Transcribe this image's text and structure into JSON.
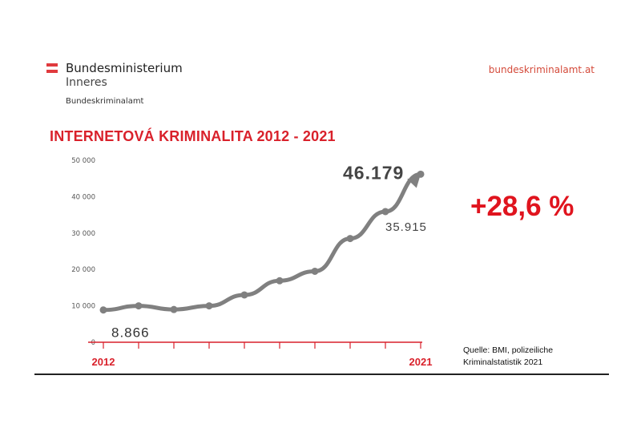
{
  "header": {
    "logo_name": "Bundesministerium",
    "logo_sub": "Inneres",
    "department": "Bundeskriminalamt",
    "website": "bundeskriminalamt.at"
  },
  "colors": {
    "accent_red": "#d9212b",
    "line_gray": "#808080"
  },
  "summary": {
    "change_label": "+28,6 %"
  },
  "source": {
    "line1": "Quelle: BMI, polizeiliche",
    "line2": "Kriminalstatistik 2021"
  },
  "chart_data": {
    "type": "line",
    "title": "INTERNETOVÁ KRIMINALITA 2012 - 2021",
    "x": [
      2012,
      2013,
      2014,
      2015,
      2016,
      2017,
      2018,
      2019,
      2020,
      2021
    ],
    "x_tick_labels": [
      "2012",
      "2021"
    ],
    "y_ticks": [
      0,
      10000,
      20000,
      30000,
      40000,
      50000
    ],
    "y_tick_labels": [
      "0",
      "10 000",
      "20 000",
      "30 000",
      "40 000",
      "50 000"
    ],
    "ylim": [
      0,
      50000
    ],
    "grid": false,
    "series": [
      {
        "values": [
          8866,
          10000,
          9000,
          10000,
          13000,
          16900,
          19500,
          28500,
          35915,
          46179
        ]
      }
    ],
    "annotations": [
      {
        "x": 2012,
        "text": "8.866"
      },
      {
        "x": 2020,
        "text": "35.915"
      },
      {
        "x": 2021,
        "text": "46.179"
      }
    ]
  }
}
